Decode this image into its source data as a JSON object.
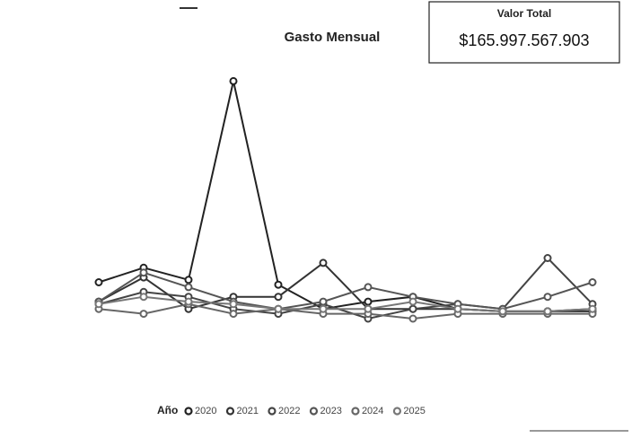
{
  "chart_data": {
    "type": "line",
    "title": "Gasto Mensual",
    "legend_title": "Año",
    "categories": [
      null,
      null,
      null,
      null,
      null,
      null,
      null,
      null,
      null,
      null,
      null,
      null
    ],
    "series": [
      {
        "name": "2020",
        "color": "#222222",
        "values": [
          15,
          21,
          16,
          98,
          14,
          4,
          7,
          9,
          4,
          3,
          3,
          4
        ]
      },
      {
        "name": "2021",
        "color": "#333333",
        "values": [
          7,
          17,
          4,
          9,
          9,
          23,
          4,
          4,
          4,
          3,
          3,
          3
        ]
      },
      {
        "name": "2022",
        "color": "#444444",
        "values": [
          6,
          11,
          9,
          4,
          2,
          6,
          0,
          4,
          6,
          4,
          25,
          6
        ]
      },
      {
        "name": "2023",
        "color": "#555555",
        "values": [
          7,
          19,
          13,
          7,
          4,
          7,
          13,
          9,
          6,
          4,
          9,
          15
        ]
      },
      {
        "name": "2024",
        "color": "#666666",
        "values": [
          4,
          2,
          6,
          2,
          4,
          2,
          2,
          0,
          2,
          2,
          2,
          2
        ]
      },
      {
        "name": "2025",
        "color": "#777777",
        "values": [
          6,
          9,
          7,
          6,
          4,
          4,
          4,
          7,
          4,
          3,
          3,
          4
        ]
      }
    ],
    "ylim": [
      0,
      100
    ],
    "legend": "bottom"
  },
  "kpi": {
    "title": "Valor Total",
    "value": "$165.997.567.903"
  }
}
